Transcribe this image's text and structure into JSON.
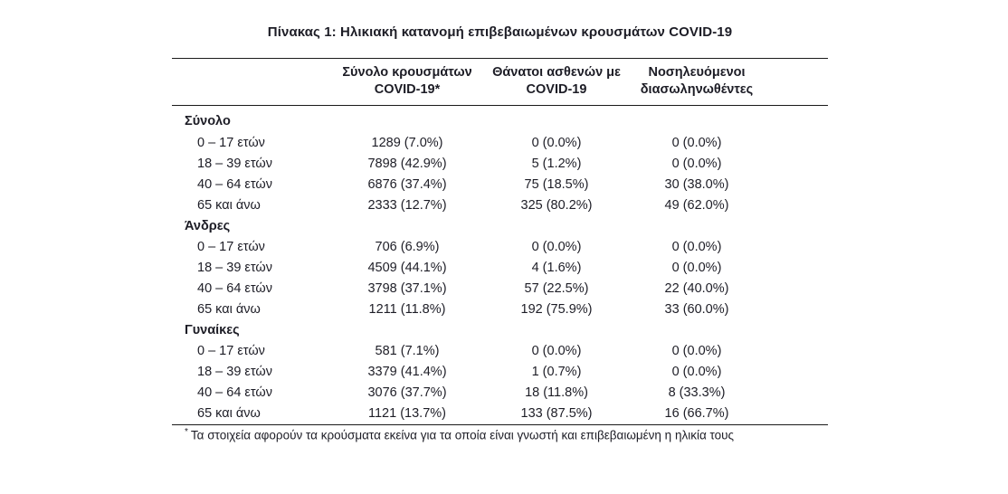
{
  "page": {
    "title": "Πίνακας 1: Ηλικιακή κατανομή επιβεβαιωμένων κρουσμάτων COVID-19",
    "footnote_marker": "*",
    "footnote": "Τα στοιχεία αφορούν τα κρούσματα εκείνα για τα οποία είναι γνωστή και επιβεβαιωμένη η ηλικία τους"
  },
  "table": {
    "columns": [
      {
        "line1": "Σύνολο κρουσμάτων",
        "line2": "COVID-19*"
      },
      {
        "line1": "Θάνατοι ασθενών με",
        "line2": "COVID-19"
      },
      {
        "line1": "Νοσηλευόμενοι",
        "line2": "διασωληνωθέντες"
      }
    ],
    "sections": [
      {
        "label": "Σύνολο",
        "rows": [
          {
            "label": "0 – 17 ετών",
            "cases": "1289 (7.0%)",
            "deaths": "0 (0.0%)",
            "intubated": "0 (0.0%)"
          },
          {
            "label": "18 – 39 ετών",
            "cases": "7898 (42.9%)",
            "deaths": "5 (1.2%)",
            "intubated": "0 (0.0%)"
          },
          {
            "label": "40 – 64 ετών",
            "cases": "6876 (37.4%)",
            "deaths": "75 (18.5%)",
            "intubated": "30 (38.0%)"
          },
          {
            "label": "65 και άνω",
            "cases": "2333 (12.7%)",
            "deaths": "325 (80.2%)",
            "intubated": "49 (62.0%)"
          }
        ]
      },
      {
        "label": "Άνδρες",
        "rows": [
          {
            "label": "0 – 17 ετών",
            "cases": "706 (6.9%)",
            "deaths": "0 (0.0%)",
            "intubated": "0 (0.0%)"
          },
          {
            "label": "18 – 39 ετών",
            "cases": "4509 (44.1%)",
            "deaths": "4 (1.6%)",
            "intubated": "0 (0.0%)"
          },
          {
            "label": "40 – 64 ετών",
            "cases": "3798 (37.1%)",
            "deaths": "57 (22.5%)",
            "intubated": "22 (40.0%)"
          },
          {
            "label": "65 και άνω",
            "cases": "1211 (11.8%)",
            "deaths": "192 (75.9%)",
            "intubated": "33 (60.0%)"
          }
        ]
      },
      {
        "label": "Γυναίκες",
        "rows": [
          {
            "label": "0 – 17 ετών",
            "cases": "581 (7.1%)",
            "deaths": "0 (0.0%)",
            "intubated": "0 (0.0%)"
          },
          {
            "label": "18 – 39 ετών",
            "cases": "3379 (41.4%)",
            "deaths": "1 (0.7%)",
            "intubated": "0 (0.0%)"
          },
          {
            "label": "40 – 64 ετών",
            "cases": "3076 (37.7%)",
            "deaths": "18 (11.8%)",
            "intubated": "8 (33.3%)"
          },
          {
            "label": "65 και άνω",
            "cases": "1121 (13.7%)",
            "deaths": "133 (87.5%)",
            "intubated": "16 (66.7%)"
          }
        ]
      }
    ]
  }
}
